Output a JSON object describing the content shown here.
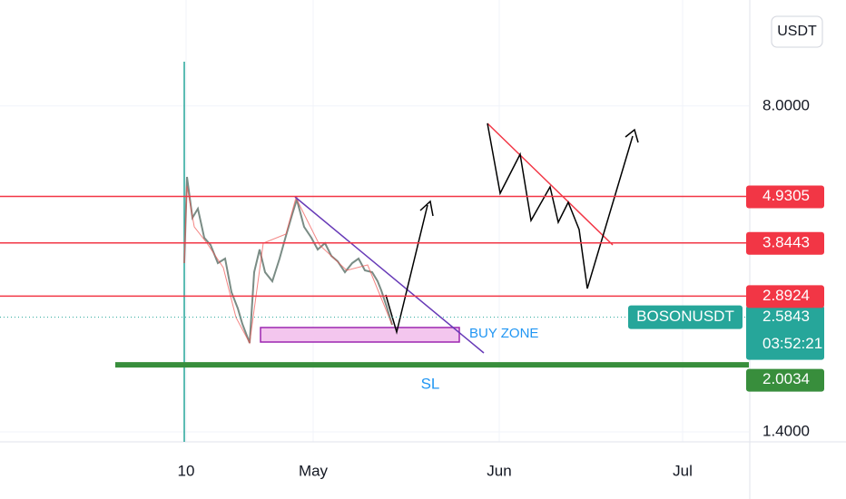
{
  "chart_data": {
    "type": "candlestick",
    "symbol": "BOSONUSDT",
    "currency": "USDT",
    "yscale": "log",
    "ylim": [
      1.327,
      14.1
    ],
    "yticks": [
      {
        "value": 1.4,
        "label": "1.4000"
      },
      {
        "value": 8,
        "label": "8.0000"
      }
    ],
    "xticks": [
      "10",
      "May",
      "Jun",
      "Jul"
    ],
    "levels": [
      {
        "value": 4.9305,
        "label": "4.9305",
        "color": "#f23645"
      },
      {
        "value": 3.8443,
        "label": "3.8443",
        "color": "#f23645"
      },
      {
        "value": 2.8924,
        "label": "2.8924",
        "color": "#f23645"
      },
      {
        "value": 2.0034,
        "label": "2.0034",
        "color": "#388e3c"
      }
    ],
    "last_price": {
      "value": 2.5843,
      "label": "2.5843",
      "countdown": "03:52:21",
      "color": "#26a69a"
    },
    "annotations": {
      "buy_zone": "BUY ZONE",
      "stop_loss": "SL"
    }
  }
}
